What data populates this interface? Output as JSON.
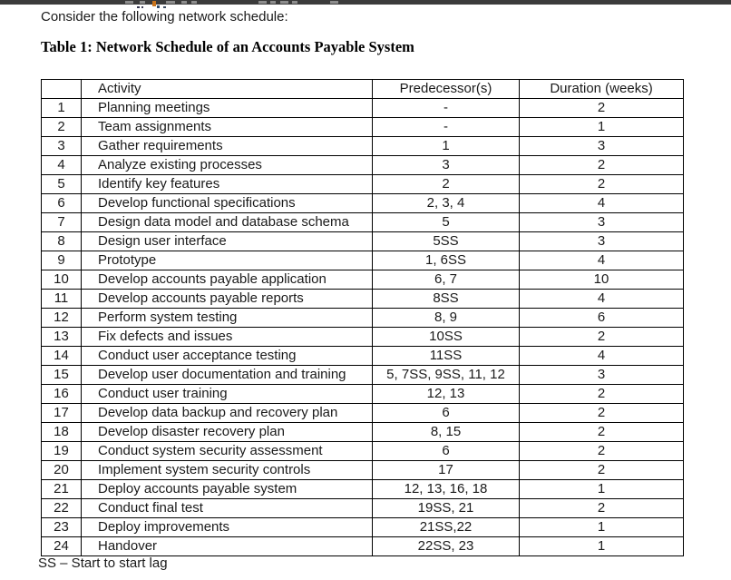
{
  "page": {
    "intro": "Consider the following network schedule:",
    "table_title": "Table 1: Network Schedule of an Accounts Payable System",
    "footnote": "SS – Start to start lag"
  },
  "table": {
    "headers": [
      "",
      "Activity",
      "Predecessor(s)",
      "Duration (weeks)"
    ],
    "rows": [
      {
        "num": "1",
        "activity": "Planning meetings",
        "predecessors": "-",
        "duration": "2"
      },
      {
        "num": "2",
        "activity": "Team assignments",
        "predecessors": "-",
        "duration": "1"
      },
      {
        "num": "3",
        "activity": "Gather requirements",
        "predecessors": "1",
        "duration": "3"
      },
      {
        "num": "4",
        "activity": "Analyze existing processes",
        "predecessors": "3",
        "duration": "2"
      },
      {
        "num": "5",
        "activity": "Identify key features",
        "predecessors": "2",
        "duration": "2"
      },
      {
        "num": "6",
        "activity": "Develop functional specifications",
        "predecessors": "2, 3, 4",
        "duration": "4"
      },
      {
        "num": "7",
        "activity": "Design data model and database schema",
        "predecessors": "5",
        "duration": "3"
      },
      {
        "num": "8",
        "activity": "Design user interface",
        "predecessors": "5SS",
        "duration": "3"
      },
      {
        "num": "9",
        "activity": "Prototype",
        "predecessors": "1, 6SS",
        "duration": "4"
      },
      {
        "num": "10",
        "activity": "Develop accounts payable application",
        "predecessors": "6, 7",
        "duration": "10"
      },
      {
        "num": "11",
        "activity": "Develop accounts payable reports",
        "predecessors": "8SS",
        "duration": "4"
      },
      {
        "num": "12",
        "activity": "Perform system testing",
        "predecessors": "8, 9",
        "duration": "6"
      },
      {
        "num": "13",
        "activity": "Fix defects and issues",
        "predecessors": "10SS",
        "duration": "2"
      },
      {
        "num": "14",
        "activity": "Conduct user acceptance testing",
        "predecessors": "11SS",
        "duration": "4"
      },
      {
        "num": "15",
        "activity": "Develop user documentation and training",
        "predecessors": "5, 7SS, 9SS, 11, 12",
        "duration": "3"
      },
      {
        "num": "16",
        "activity": "Conduct user training",
        "predecessors": "12, 13",
        "duration": "2"
      },
      {
        "num": "17",
        "activity": "Develop data backup and recovery plan",
        "predecessors": "6",
        "duration": "2"
      },
      {
        "num": "18",
        "activity": "Develop disaster recovery plan",
        "predecessors": "8, 15",
        "duration": "2"
      },
      {
        "num": "19",
        "activity": "Conduct system security assessment",
        "predecessors": "6",
        "duration": "2"
      },
      {
        "num": "20",
        "activity": "Implement system security controls",
        "predecessors": "17",
        "duration": "2"
      },
      {
        "num": "21",
        "activity": "Deploy accounts payable system",
        "predecessors": "12, 13, 16, 18",
        "duration": "1"
      },
      {
        "num": "22",
        "activity": "Conduct final test",
        "predecessors": "19SS, 21",
        "duration": "2"
      },
      {
        "num": "23",
        "activity": "Deploy improvements",
        "predecessors": "21SS,22",
        "duration": "1"
      },
      {
        "num": "24",
        "activity": "Handover",
        "predecessors": "22SS, 23",
        "duration": "1"
      }
    ]
  },
  "colors": {
    "top_bar": "#3b3b3b",
    "text": "#1a1a1a",
    "border": "#000000",
    "background": "#ffffff"
  }
}
